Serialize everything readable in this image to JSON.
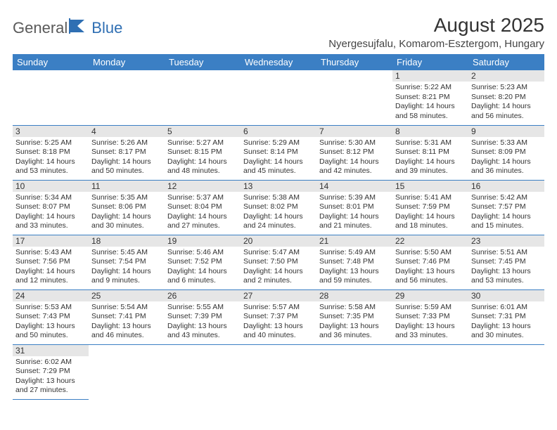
{
  "logo": {
    "text1": "General",
    "text2": "Blue"
  },
  "title": "August 2025",
  "location": "Nyergesujfalu, Komarom-Esztergom, Hungary",
  "headers": [
    "Sunday",
    "Monday",
    "Tuesday",
    "Wednesday",
    "Thursday",
    "Friday",
    "Saturday"
  ],
  "colors": {
    "header_bg": "#3b7fc4",
    "daynum_bg": "#e6e6e6",
    "logo_accent": "#2f6fb3"
  },
  "grid": [
    [
      null,
      null,
      null,
      null,
      null,
      {
        "n": "1",
        "sr": "5:22 AM",
        "ss": "8:21 PM",
        "dl": "14 hours and 58 minutes."
      },
      {
        "n": "2",
        "sr": "5:23 AM",
        "ss": "8:20 PM",
        "dl": "14 hours and 56 minutes."
      }
    ],
    [
      {
        "n": "3",
        "sr": "5:25 AM",
        "ss": "8:18 PM",
        "dl": "14 hours and 53 minutes."
      },
      {
        "n": "4",
        "sr": "5:26 AM",
        "ss": "8:17 PM",
        "dl": "14 hours and 50 minutes."
      },
      {
        "n": "5",
        "sr": "5:27 AM",
        "ss": "8:15 PM",
        "dl": "14 hours and 48 minutes."
      },
      {
        "n": "6",
        "sr": "5:29 AM",
        "ss": "8:14 PM",
        "dl": "14 hours and 45 minutes."
      },
      {
        "n": "7",
        "sr": "5:30 AM",
        "ss": "8:12 PM",
        "dl": "14 hours and 42 minutes."
      },
      {
        "n": "8",
        "sr": "5:31 AM",
        "ss": "8:11 PM",
        "dl": "14 hours and 39 minutes."
      },
      {
        "n": "9",
        "sr": "5:33 AM",
        "ss": "8:09 PM",
        "dl": "14 hours and 36 minutes."
      }
    ],
    [
      {
        "n": "10",
        "sr": "5:34 AM",
        "ss": "8:07 PM",
        "dl": "14 hours and 33 minutes."
      },
      {
        "n": "11",
        "sr": "5:35 AM",
        "ss": "8:06 PM",
        "dl": "14 hours and 30 minutes."
      },
      {
        "n": "12",
        "sr": "5:37 AM",
        "ss": "8:04 PM",
        "dl": "14 hours and 27 minutes."
      },
      {
        "n": "13",
        "sr": "5:38 AM",
        "ss": "8:02 PM",
        "dl": "14 hours and 24 minutes."
      },
      {
        "n": "14",
        "sr": "5:39 AM",
        "ss": "8:01 PM",
        "dl": "14 hours and 21 minutes."
      },
      {
        "n": "15",
        "sr": "5:41 AM",
        "ss": "7:59 PM",
        "dl": "14 hours and 18 minutes."
      },
      {
        "n": "16",
        "sr": "5:42 AM",
        "ss": "7:57 PM",
        "dl": "14 hours and 15 minutes."
      }
    ],
    [
      {
        "n": "17",
        "sr": "5:43 AM",
        "ss": "7:56 PM",
        "dl": "14 hours and 12 minutes."
      },
      {
        "n": "18",
        "sr": "5:45 AM",
        "ss": "7:54 PM",
        "dl": "14 hours and 9 minutes."
      },
      {
        "n": "19",
        "sr": "5:46 AM",
        "ss": "7:52 PM",
        "dl": "14 hours and 6 minutes."
      },
      {
        "n": "20",
        "sr": "5:47 AM",
        "ss": "7:50 PM",
        "dl": "14 hours and 2 minutes."
      },
      {
        "n": "21",
        "sr": "5:49 AM",
        "ss": "7:48 PM",
        "dl": "13 hours and 59 minutes."
      },
      {
        "n": "22",
        "sr": "5:50 AM",
        "ss": "7:46 PM",
        "dl": "13 hours and 56 minutes."
      },
      {
        "n": "23",
        "sr": "5:51 AM",
        "ss": "7:45 PM",
        "dl": "13 hours and 53 minutes."
      }
    ],
    [
      {
        "n": "24",
        "sr": "5:53 AM",
        "ss": "7:43 PM",
        "dl": "13 hours and 50 minutes."
      },
      {
        "n": "25",
        "sr": "5:54 AM",
        "ss": "7:41 PM",
        "dl": "13 hours and 46 minutes."
      },
      {
        "n": "26",
        "sr": "5:55 AM",
        "ss": "7:39 PM",
        "dl": "13 hours and 43 minutes."
      },
      {
        "n": "27",
        "sr": "5:57 AM",
        "ss": "7:37 PM",
        "dl": "13 hours and 40 minutes."
      },
      {
        "n": "28",
        "sr": "5:58 AM",
        "ss": "7:35 PM",
        "dl": "13 hours and 36 minutes."
      },
      {
        "n": "29",
        "sr": "5:59 AM",
        "ss": "7:33 PM",
        "dl": "13 hours and 33 minutes."
      },
      {
        "n": "30",
        "sr": "6:01 AM",
        "ss": "7:31 PM",
        "dl": "13 hours and 30 minutes."
      }
    ],
    [
      {
        "n": "31",
        "sr": "6:02 AM",
        "ss": "7:29 PM",
        "dl": "13 hours and 27 minutes."
      },
      null,
      null,
      null,
      null,
      null,
      null
    ]
  ],
  "labels": {
    "sunrise": "Sunrise:",
    "sunset": "Sunset:",
    "daylight": "Daylight:"
  }
}
